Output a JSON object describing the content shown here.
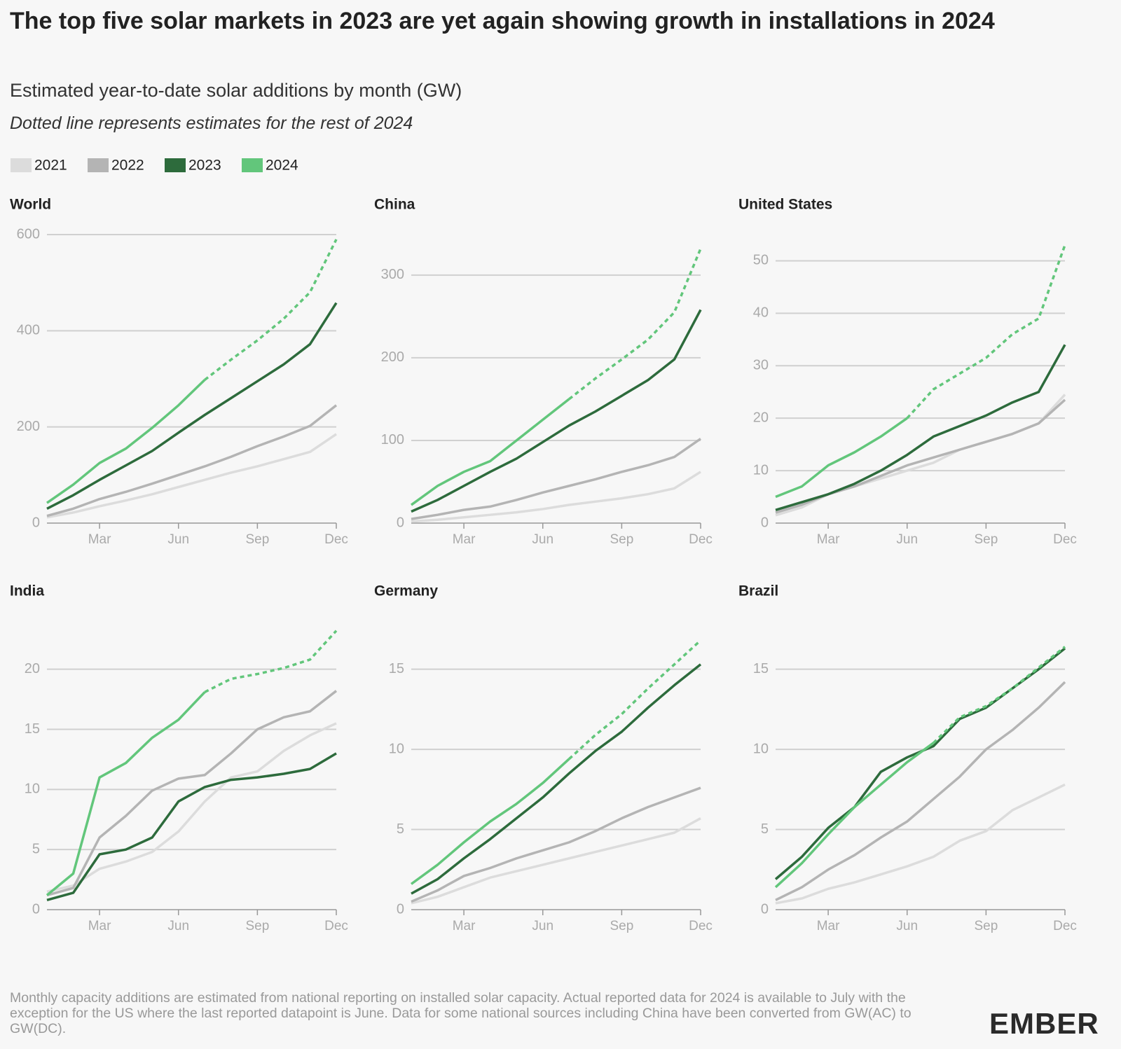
{
  "title": "The top five solar markets in 2023 are yet again showing growth in installations in 2024",
  "subtitle": "Estimated year-to-date solar additions by month (GW)",
  "note": "Dotted line represents estimates for the rest of 2024",
  "footnote": "Monthly capacity additions are estimated from national reporting on installed solar capacity. Actual reported data for 2024 is available to July with the exception for the US where the last reported datapoint is June. Data for some national sources including China have been converted from GW(AC) to GW(DC).",
  "logo": "EMBER",
  "chart_data": [
    {
      "type": "line",
      "title": "World",
      "categories": [
        null,
        null,
        "Mar",
        null,
        null,
        "Jun",
        null,
        null,
        "Sep",
        null,
        null,
        "Dec"
      ],
      "ylim": [
        0,
        600
      ],
      "yticks": [
        0,
        200,
        400,
        600
      ],
      "grid": true,
      "series": [
        {
          "name": "2021",
          "color": "#dcdcdc",
          "values": [
            12,
            22,
            35,
            47,
            60,
            75,
            90,
            105,
            118,
            133,
            148,
            185
          ]
        },
        {
          "name": "2022",
          "color": "#b4b4b4",
          "values": [
            15,
            30,
            50,
            65,
            82,
            100,
            118,
            138,
            160,
            180,
            202,
            245
          ]
        },
        {
          "name": "2023",
          "color": "#2d6b3c",
          "values": [
            30,
            58,
            90,
            120,
            150,
            188,
            225,
            260,
            295,
            330,
            372,
            458
          ]
        },
        {
          "name": "2024",
          "color": "#62c67b",
          "dashed_from": 6,
          "values": [
            42,
            80,
            125,
            155,
            198,
            245,
            298,
            340,
            380,
            425,
            480,
            590
          ]
        }
      ]
    },
    {
      "type": "line",
      "title": "China",
      "categories": [
        null,
        null,
        "Mar",
        null,
        null,
        "Jun",
        null,
        null,
        "Sep",
        null,
        null,
        "Dec"
      ],
      "ylim": [
        0,
        349
      ],
      "yticks": [
        0,
        100,
        200,
        300
      ],
      "grid": true,
      "series": [
        {
          "name": "2021",
          "color": "#dcdcdc",
          "values": [
            2,
            4,
            7,
            10,
            13,
            17,
            22,
            26,
            30,
            35,
            42,
            62
          ]
        },
        {
          "name": "2022",
          "color": "#b4b4b4",
          "values": [
            5,
            10,
            16,
            20,
            28,
            37,
            45,
            53,
            62,
            70,
            80,
            102
          ]
        },
        {
          "name": "2023",
          "color": "#2d6b3c",
          "values": [
            14,
            28,
            45,
            62,
            78,
            98,
            118,
            135,
            154,
            173,
            198,
            258
          ]
        },
        {
          "name": "2024",
          "color": "#62c67b",
          "dashed_from": 6,
          "values": [
            22,
            45,
            62,
            75,
            100,
            125,
            150,
            175,
            198,
            222,
            255,
            332
          ]
        }
      ]
    },
    {
      "type": "line",
      "title": "United States",
      "categories": [
        null,
        null,
        "Mar",
        null,
        null,
        "Jun",
        null,
        null,
        "Sep",
        null,
        null,
        "Dec"
      ],
      "ylim": [
        0,
        55
      ],
      "yticks": [
        0,
        10,
        20,
        30,
        40,
        50
      ],
      "grid": true,
      "series": [
        {
          "name": "2021",
          "color": "#dcdcdc",
          "values": [
            1.5,
            3,
            5.5,
            7,
            8.5,
            10,
            11.5,
            14,
            15.5,
            17,
            19,
            24.5
          ]
        },
        {
          "name": "2022",
          "color": "#b4b4b4",
          "values": [
            2,
            3.5,
            5.5,
            7,
            9,
            11,
            12.5,
            14,
            15.5,
            17,
            19,
            23.5
          ]
        },
        {
          "name": "2023",
          "color": "#2d6b3c",
          "values": [
            2.5,
            4,
            5.5,
            7.5,
            10,
            13,
            16.5,
            18.5,
            20.5,
            23,
            25,
            34
          ]
        },
        {
          "name": "2024",
          "color": "#62c67b",
          "dashed_from": 5,
          "values": [
            5,
            7,
            11,
            13.5,
            16.5,
            20,
            25.5,
            28.5,
            31.5,
            36,
            39,
            53
          ]
        }
      ]
    },
    {
      "type": "line",
      "title": "India",
      "categories": [
        null,
        null,
        "Mar",
        null,
        null,
        "Jun",
        null,
        null,
        "Sep",
        null,
        null,
        "Dec"
      ],
      "ylim": [
        0,
        24
      ],
      "yticks": [
        0,
        5,
        10,
        15,
        20
      ],
      "grid": true,
      "series": [
        {
          "name": "2021",
          "color": "#dcdcdc",
          "values": [
            1.5,
            2,
            3.4,
            4,
            4.8,
            6.5,
            9,
            11,
            11.5,
            13.2,
            14.5,
            15.5
          ]
        },
        {
          "name": "2022",
          "color": "#b4b4b4",
          "values": [
            1.2,
            1.8,
            6,
            7.8,
            9.9,
            10.9,
            11.2,
            13,
            15,
            16,
            16.5,
            18.2
          ]
        },
        {
          "name": "2023",
          "color": "#2d6b3c",
          "values": [
            0.8,
            1.4,
            4.6,
            5,
            6,
            9,
            10.2,
            10.8,
            11,
            11.3,
            11.7,
            13
          ]
        },
        {
          "name": "2024",
          "color": "#62c67b",
          "dashed_from": 6,
          "values": [
            1.2,
            3,
            11,
            12.2,
            14.3,
            15.8,
            18.1,
            19.2,
            19.6,
            20.1,
            20.8,
            23.2
          ]
        }
      ]
    },
    {
      "type": "line",
      "title": "Germany",
      "categories": [
        null,
        null,
        "Mar",
        null,
        null,
        "Jun",
        null,
        null,
        "Sep",
        null,
        null,
        "Dec"
      ],
      "ylim": [
        0,
        18
      ],
      "yticks": [
        0,
        5,
        10,
        15
      ],
      "grid": true,
      "series": [
        {
          "name": "2021",
          "color": "#dcdcdc",
          "values": [
            0.4,
            0.8,
            1.4,
            2,
            2.4,
            2.8,
            3.2,
            3.6,
            4,
            4.4,
            4.8,
            5.7
          ]
        },
        {
          "name": "2022",
          "color": "#b4b4b4",
          "values": [
            0.5,
            1.2,
            2.1,
            2.6,
            3.2,
            3.7,
            4.2,
            4.9,
            5.7,
            6.4,
            7,
            7.6
          ]
        },
        {
          "name": "2023",
          "color": "#2d6b3c",
          "values": [
            1,
            1.9,
            3.2,
            4.4,
            5.7,
            7,
            8.5,
            9.9,
            11.1,
            12.6,
            14,
            15.3
          ]
        },
        {
          "name": "2024",
          "color": "#62c67b",
          "dashed_from": 6,
          "values": [
            1.6,
            2.8,
            4.2,
            5.5,
            6.6,
            7.9,
            9.4,
            10.9,
            12.2,
            13.8,
            15.3,
            16.8
          ]
        }
      ]
    },
    {
      "type": "line",
      "title": "Brazil",
      "categories": [
        null,
        null,
        "Mar",
        null,
        null,
        "Jun",
        null,
        null,
        "Sep",
        null,
        null,
        "Dec"
      ],
      "ylim": [
        0,
        18
      ],
      "yticks": [
        0,
        5,
        10,
        15
      ],
      "grid": true,
      "series": [
        {
          "name": "2021",
          "color": "#dcdcdc",
          "values": [
            0.4,
            0.7,
            1.3,
            1.7,
            2.2,
            2.7,
            3.3,
            4.3,
            4.9,
            6.2,
            7,
            7.8
          ]
        },
        {
          "name": "2022",
          "color": "#b4b4b4",
          "values": [
            0.6,
            1.4,
            2.5,
            3.4,
            4.5,
            5.5,
            6.9,
            8.3,
            10,
            11.2,
            12.6,
            14.2
          ]
        },
        {
          "name": "2023",
          "color": "#2d6b3c",
          "values": [
            1.9,
            3.3,
            5.1,
            6.4,
            8.6,
            9.5,
            10.2,
            11.9,
            12.6,
            13.8,
            15,
            16.3
          ]
        },
        {
          "name": "2024",
          "color": "#62c67b",
          "dashed_from": 6,
          "values": [
            1.4,
            2.9,
            4.7,
            6.4,
            7.8,
            9.2,
            10.4,
            12,
            12.7,
            13.8,
            15.1,
            16.4
          ]
        }
      ]
    }
  ]
}
